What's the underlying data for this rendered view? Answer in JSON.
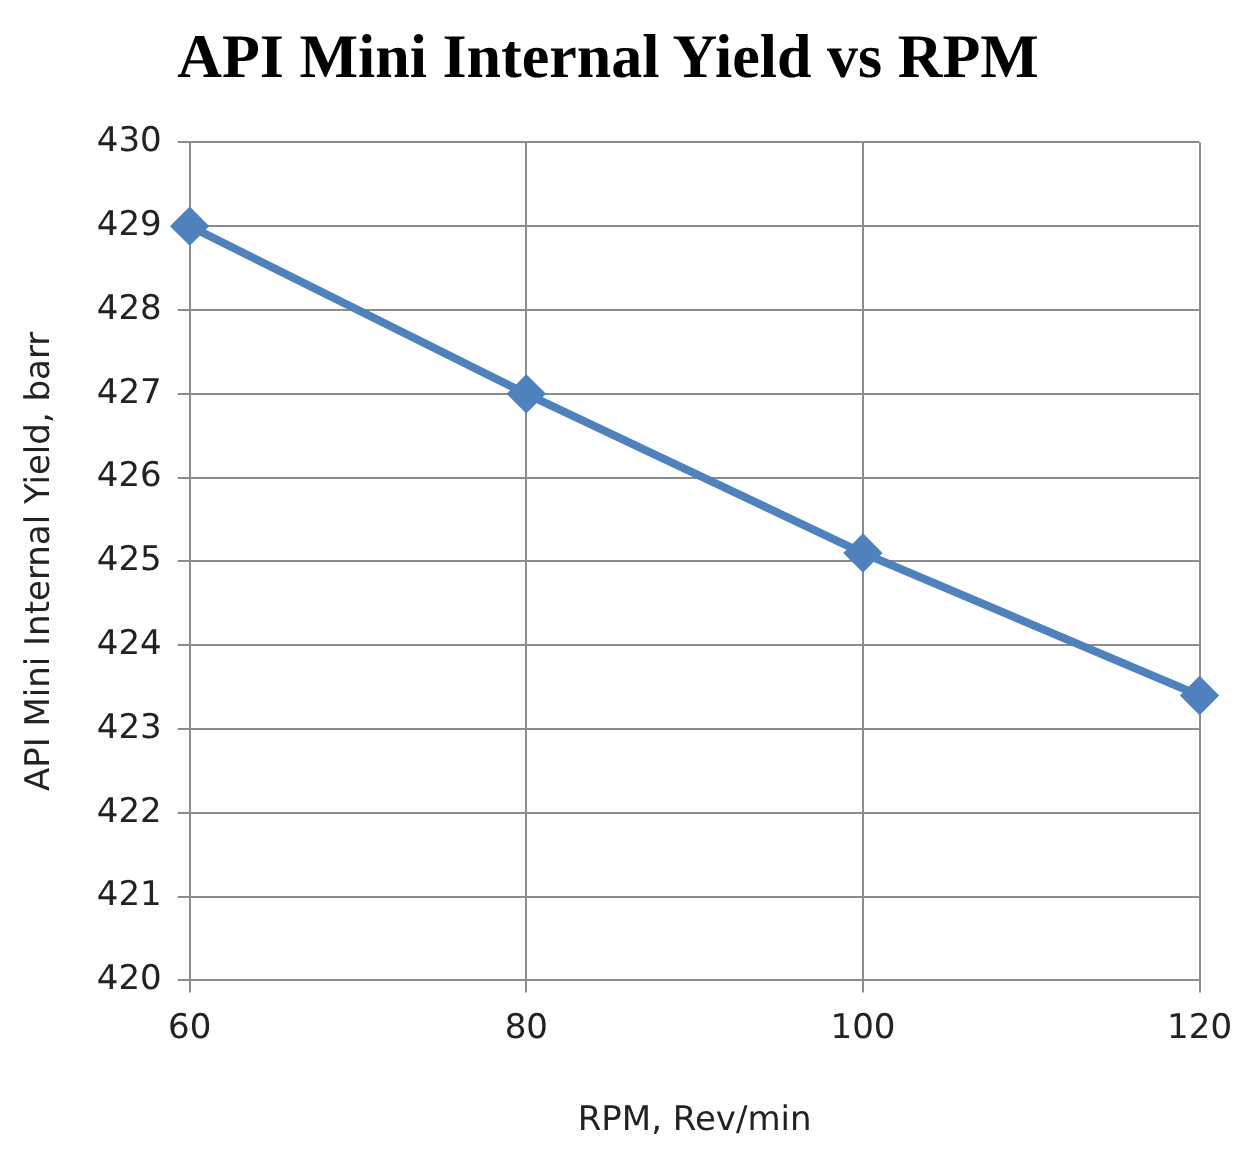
{
  "chart_data": {
    "type": "line",
    "title": "API Mini Internal Yield vs RPM",
    "xlabel": "RPM, Rev/min",
    "ylabel": "API Mini Internal Yield, barr",
    "x": [
      60,
      80,
      100,
      120
    ],
    "series": [
      {
        "color": "#4f81bd",
        "values": [
          429,
          427,
          425.1,
          423.4
        ]
      }
    ],
    "xlim": [
      60,
      120
    ],
    "xticks": [
      60,
      80,
      100,
      120
    ],
    "ylim": [
      420,
      430
    ],
    "yticks": [
      420,
      421,
      422,
      423,
      424,
      425,
      426,
      427,
      428,
      429,
      430
    ],
    "grid": true,
    "legend": false,
    "marker": "diamond",
    "line_style": "solid"
  }
}
